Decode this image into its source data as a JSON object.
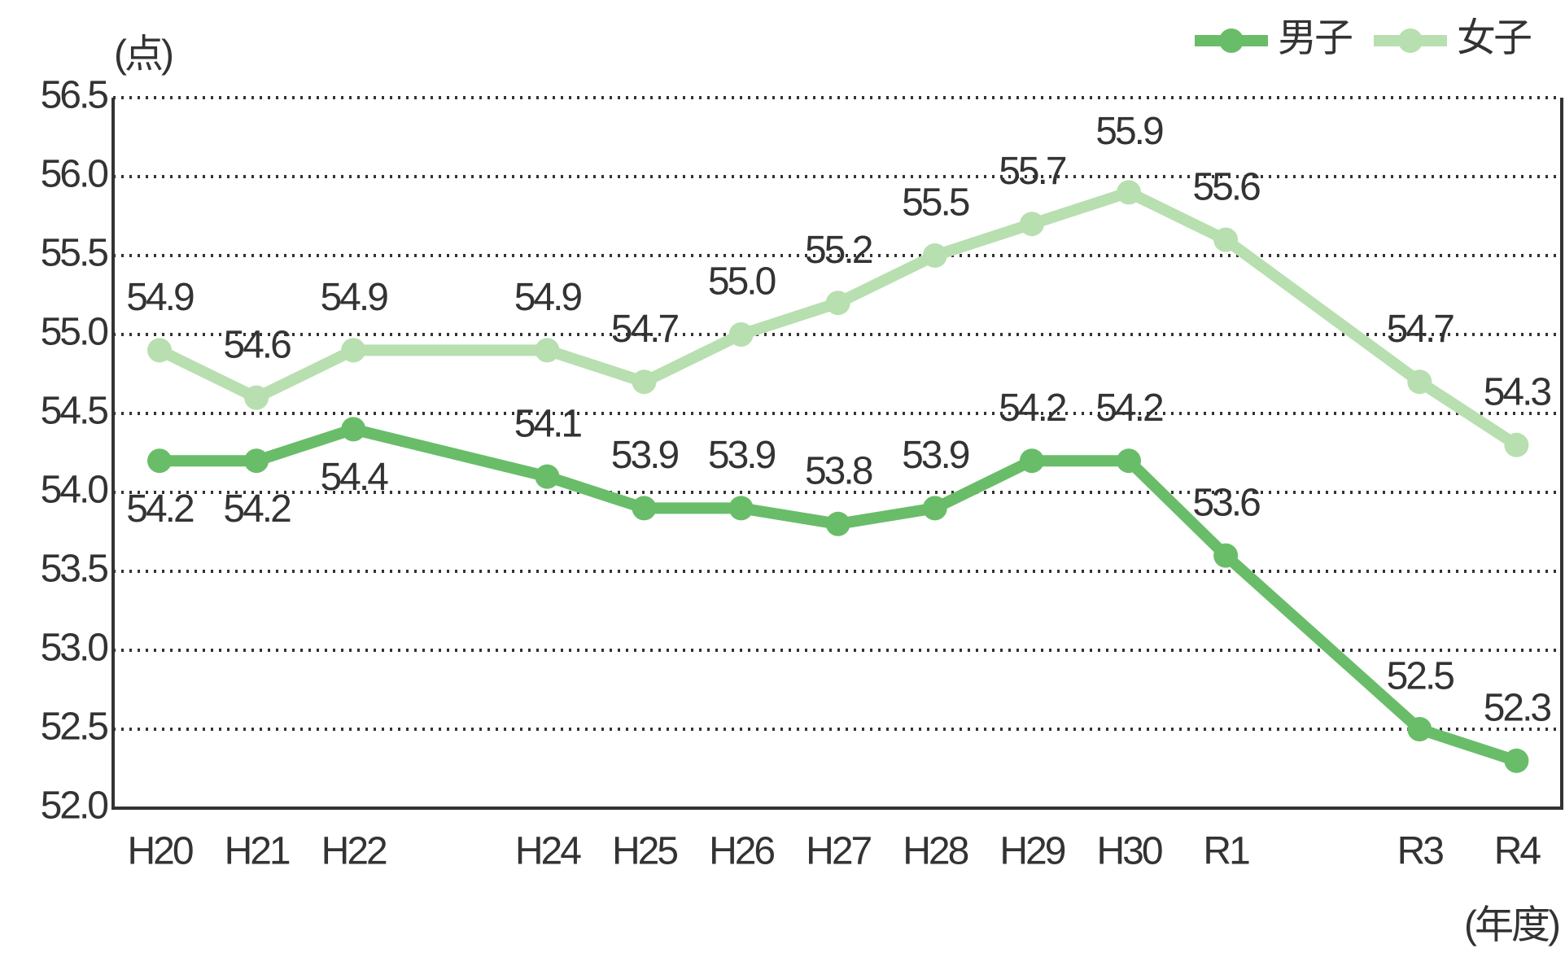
{
  "chart_data": {
    "type": "line",
    "y_unit": "(点)",
    "x_unit": "(年度)",
    "categories": [
      "H20",
      "H21",
      "H22",
      null,
      "H24",
      "H25",
      "H26",
      "H27",
      "H28",
      "H29",
      "H30",
      "R1",
      null,
      "R3",
      "R4"
    ],
    "series": [
      {
        "name": "男子",
        "color": "#69bd69",
        "values": [
          54.2,
          54.2,
          54.4,
          null,
          54.1,
          53.9,
          53.9,
          53.8,
          53.9,
          54.2,
          54.2,
          53.6,
          null,
          52.5,
          52.3
        ],
        "value_labels": [
          "54.2",
          "54.2",
          "54.4",
          null,
          "54.1",
          "53.9",
          "53.9",
          "53.8",
          "53.9",
          "54.2",
          "54.2",
          "53.6",
          null,
          "52.5",
          "52.3"
        ],
        "highlight": 2
      },
      {
        "name": "女子",
        "color": "#b8dfaf",
        "values": [
          54.9,
          54.6,
          54.9,
          null,
          54.9,
          54.7,
          55.0,
          55.2,
          55.5,
          55.7,
          55.9,
          55.6,
          null,
          54.7,
          54.3
        ],
        "value_labels": [
          "54.9",
          "54.6",
          "54.9",
          null,
          "54.9",
          "54.7",
          "55.0",
          "55.2",
          "55.5",
          "55.7",
          "55.9",
          "55.6",
          null,
          "54.7",
          "54.3"
        ],
        "highlight": 10
      }
    ],
    "highlight_color": "#e0358a",
    "ylim": [
      52,
      56.5
    ],
    "yticks": [
      {
        "value": 52,
        "label": "52.0"
      },
      52.5,
      {
        "value": 53,
        "label": "53.0"
      },
      53.5,
      {
        "value": 54,
        "label": "54.0"
      },
      54.5,
      {
        "value": 55,
        "label": "55.0"
      },
      55.5,
      {
        "value": 56,
        "label": "56.0"
      },
      56.5
    ],
    "grid": true,
    "legend": "top-right"
  }
}
